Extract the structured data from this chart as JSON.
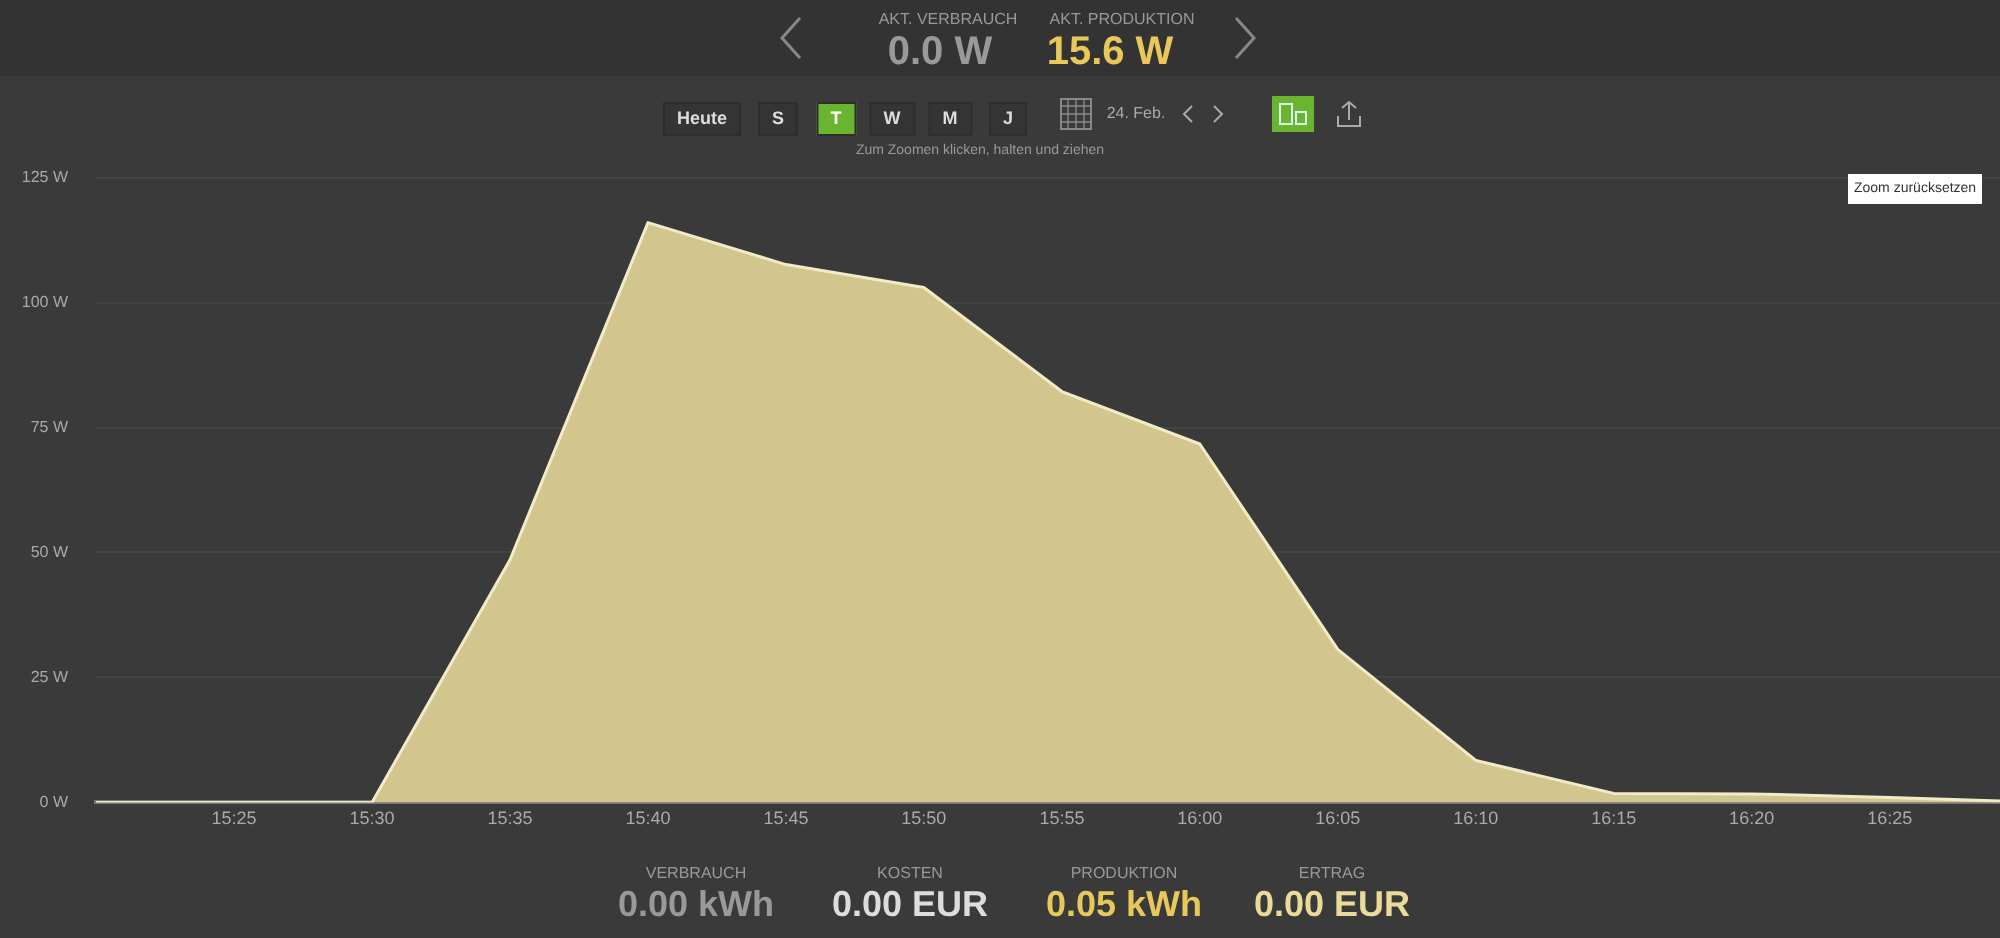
{
  "chart_data": {
    "type": "area",
    "x": [
      15.3333,
      15.5,
      15.5833,
      15.6667,
      15.75,
      15.8333,
      15.9167,
      16.0,
      16.0833,
      16.1667,
      16.25,
      16.3333,
      16.4167,
      16.4833
    ],
    "series": [
      {
        "color": "#d2c58d",
        "values": [
          0,
          0,
          48.5,
          116,
          107.6,
          103,
          82.2,
          71.7,
          30.6,
          8.4,
          1.8,
          1.7,
          1,
          0.3
        ]
      }
    ],
    "xlim": [
      15.3333,
      16.4833
    ],
    "xticks": [
      {
        "value": 15.4167,
        "label": "15:25"
      },
      {
        "value": 15.5,
        "label": "15:30"
      },
      {
        "value": 15.5833,
        "label": "15:35"
      },
      {
        "value": 15.6667,
        "label": "15:40"
      },
      {
        "value": 15.75,
        "label": "15:45"
      },
      {
        "value": 15.8333,
        "label": "15:50"
      },
      {
        "value": 15.9167,
        "label": "15:55"
      },
      {
        "value": 16.0,
        "label": "16:00"
      },
      {
        "value": 16.0833,
        "label": "16:05"
      },
      {
        "value": 16.1667,
        "label": "16:10"
      },
      {
        "value": 16.25,
        "label": "16:15"
      },
      {
        "value": 16.3333,
        "label": "16:20"
      },
      {
        "value": 16.4167,
        "label": "16:25"
      }
    ],
    "ylim": [
      0,
      125
    ],
    "yticks": [
      {
        "value": 0,
        "label": "0 W"
      },
      {
        "value": 25,
        "label": "25 W"
      },
      {
        "value": 50,
        "label": "50 W"
      },
      {
        "value": 75,
        "label": "75 W"
      },
      {
        "value": 100,
        "label": "100 W"
      },
      {
        "value": 125,
        "label": "125 W"
      }
    ],
    "grid": "y",
    "legend": false,
    "annotations": [
      "AKT. VERBRAUCH",
      "0.0 W",
      "AKT. PRODUKTION",
      "15.6 W",
      "Heute",
      "S",
      "T",
      "W",
      "M",
      "J",
      "24. Feb.",
      "Zum Zoomen klicken, halten und ziehen",
      "Zoom zurücksetzen",
      "VERBRAUCH",
      "0.00 kWh",
      "KOSTEN",
      "0.00 EUR",
      "PRODUKTION",
      "0.05 kWh",
      "ERTRAG",
      "0.00 EUR"
    ]
  }
}
